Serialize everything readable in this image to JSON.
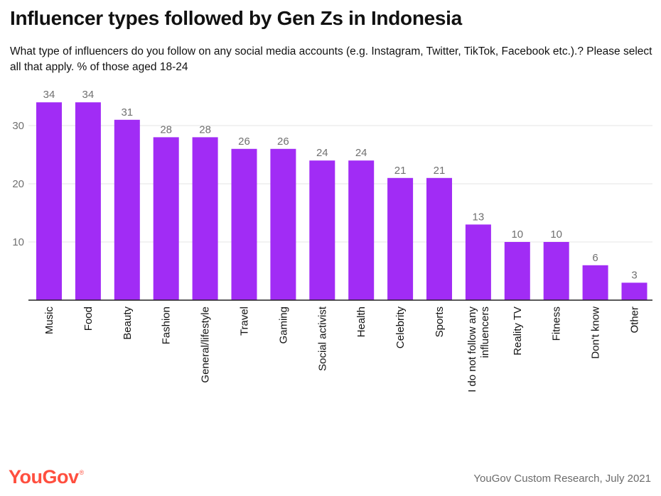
{
  "title": "Influencer types followed by Gen Zs in Indonesia",
  "subtitle": "What type of influencers do you follow on any social media accounts (e.g. Instagram, Twitter, TikTok, Facebook etc.).? Please select all that apply. % of those aged 18-24",
  "source": "YouGov Custom Research, July 2021",
  "logo": "YouGov",
  "colors": {
    "bar": "#a12cf5",
    "grid": "#e6e6e6",
    "axis": "#222222",
    "label": "#707070",
    "logo": "#ff4f3f"
  },
  "chart_data": {
    "type": "bar",
    "categories": [
      "Music",
      "Food",
      "Beauty",
      "Fashion",
      "General/lifestyle",
      "Travel",
      "Gaming",
      "Social activist",
      "Health",
      "Celebrity",
      "Sports",
      "I do not follow any influencers",
      "Reality TV",
      "Fitness",
      "Don't know",
      "Other"
    ],
    "values": [
      34,
      34,
      31,
      28,
      28,
      26,
      26,
      24,
      24,
      21,
      21,
      13,
      10,
      10,
      6,
      3
    ],
    "yticks": [
      10,
      20,
      30
    ],
    "ylim": [
      0,
      36
    ],
    "grid": true,
    "xlabel": "",
    "ylabel": ""
  }
}
